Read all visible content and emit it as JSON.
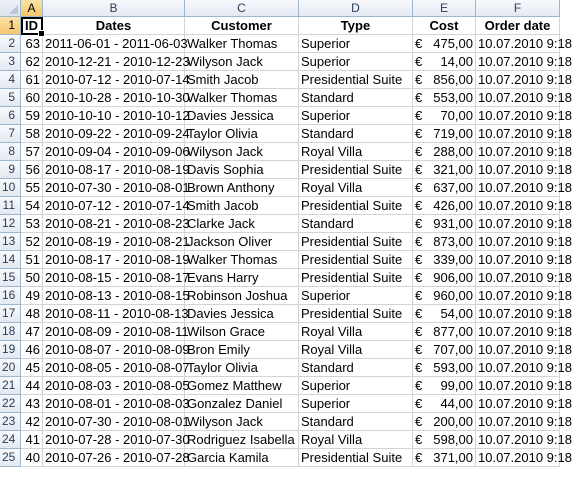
{
  "columns": [
    "A",
    "B",
    "C",
    "D",
    "E",
    "F"
  ],
  "headers": {
    "id": "ID",
    "dates": "Dates",
    "customer": "Customer",
    "type": "Type",
    "cost": "Cost",
    "order_date": "Order date"
  },
  "header_row_number": "1",
  "currency_symbol": "€",
  "rows": [
    {
      "n": "2",
      "id": "63",
      "dates": "2011-06-01 - 2011-06-03",
      "customer": "Walker Thomas",
      "type": "Superior",
      "cost": "475,00",
      "order_date": "10.07.2010 9:18"
    },
    {
      "n": "3",
      "id": "62",
      "dates": "2010-12-21 - 2010-12-23",
      "customer": "Wilyson Jack",
      "type": "Superior",
      "cost": "14,00",
      "order_date": "10.07.2010 9:18"
    },
    {
      "n": "4",
      "id": "61",
      "dates": "2010-07-12 - 2010-07-14",
      "customer": "Smith Jacob",
      "type": "Presidential Suite",
      "cost": "856,00",
      "order_date": "10.07.2010 9:18"
    },
    {
      "n": "5",
      "id": "60",
      "dates": "2010-10-28 - 2010-10-30",
      "customer": "Walker Thomas",
      "type": "Standard",
      "cost": "553,00",
      "order_date": "10.07.2010 9:18"
    },
    {
      "n": "6",
      "id": "59",
      "dates": "2010-10-10 - 2010-10-12",
      "customer": "Davies Jessica",
      "type": "Superior",
      "cost": "70,00",
      "order_date": "10.07.2010 9:18"
    },
    {
      "n": "7",
      "id": "58",
      "dates": "2010-09-22 - 2010-09-24",
      "customer": "Taylor Olivia",
      "type": "Standard",
      "cost": "719,00",
      "order_date": "10.07.2010 9:18"
    },
    {
      "n": "8",
      "id": "57",
      "dates": "2010-09-04 - 2010-09-06",
      "customer": "Wilyson Jack",
      "type": "Royal Villa",
      "cost": "288,00",
      "order_date": "10.07.2010 9:18"
    },
    {
      "n": "9",
      "id": "56",
      "dates": "2010-08-17 - 2010-08-19",
      "customer": "Davis Sophia",
      "type": "Presidential Suite",
      "cost": "321,00",
      "order_date": "10.07.2010 9:18"
    },
    {
      "n": "10",
      "id": "55",
      "dates": "2010-07-30 - 2010-08-01",
      "customer": "Brown Anthony",
      "type": "Royal Villa",
      "cost": "637,00",
      "order_date": "10.07.2010 9:18"
    },
    {
      "n": "11",
      "id": "54",
      "dates": "2010-07-12 - 2010-07-14",
      "customer": "Smith Jacob",
      "type": "Presidential Suite",
      "cost": "426,00",
      "order_date": "10.07.2010 9:18"
    },
    {
      "n": "12",
      "id": "53",
      "dates": "2010-08-21 - 2010-08-23",
      "customer": "Clarke Jack",
      "type": "Standard",
      "cost": "931,00",
      "order_date": "10.07.2010 9:18"
    },
    {
      "n": "13",
      "id": "52",
      "dates": "2010-08-19 - 2010-08-21",
      "customer": "Jackson Oliver",
      "type": "Presidential Suite",
      "cost": "873,00",
      "order_date": "10.07.2010 9:18"
    },
    {
      "n": "14",
      "id": "51",
      "dates": "2010-08-17 - 2010-08-19",
      "customer": "Walker Thomas",
      "type": "Presidential Suite",
      "cost": "339,00",
      "order_date": "10.07.2010 9:18"
    },
    {
      "n": "15",
      "id": "50",
      "dates": "2010-08-15 - 2010-08-17",
      "customer": "Evans Harry",
      "type": "Presidential Suite",
      "cost": "906,00",
      "order_date": "10.07.2010 9:18"
    },
    {
      "n": "16",
      "id": "49",
      "dates": "2010-08-13 - 2010-08-15",
      "customer": "Robinson Joshua",
      "type": "Superior",
      "cost": "960,00",
      "order_date": "10.07.2010 9:18"
    },
    {
      "n": "17",
      "id": "48",
      "dates": "2010-08-11 - 2010-08-13",
      "customer": "Davies Jessica",
      "type": "Presidential Suite",
      "cost": "54,00",
      "order_date": "10.07.2010 9:18"
    },
    {
      "n": "18",
      "id": "47",
      "dates": "2010-08-09 - 2010-08-11",
      "customer": "Wilson Grace",
      "type": "Royal Villa",
      "cost": "877,00",
      "order_date": "10.07.2010 9:18"
    },
    {
      "n": "19",
      "id": "46",
      "dates": "2010-08-07 - 2010-08-09",
      "customer": "Bron Emily",
      "type": "Royal Villa",
      "cost": "707,00",
      "order_date": "10.07.2010 9:18"
    },
    {
      "n": "20",
      "id": "45",
      "dates": "2010-08-05 - 2010-08-07",
      "customer": "Taylor Olivia",
      "type": "Standard",
      "cost": "593,00",
      "order_date": "10.07.2010 9:18"
    },
    {
      "n": "21",
      "id": "44",
      "dates": "2010-08-03 - 2010-08-05",
      "customer": "Gomez Matthew",
      "type": "Superior",
      "cost": "99,00",
      "order_date": "10.07.2010 9:18"
    },
    {
      "n": "22",
      "id": "43",
      "dates": "2010-08-01 - 2010-08-03",
      "customer": "Gonzalez Daniel",
      "type": "Superior",
      "cost": "44,00",
      "order_date": "10.07.2010 9:18"
    },
    {
      "n": "23",
      "id": "42",
      "dates": "2010-07-30 - 2010-08-01",
      "customer": "Wilyson Jack",
      "type": "Standard",
      "cost": "200,00",
      "order_date": "10.07.2010 9:18"
    },
    {
      "n": "24",
      "id": "41",
      "dates": "2010-07-28 - 2010-07-30",
      "customer": "Rodriguez Isabella",
      "type": "Royal Villa",
      "cost": "598,00",
      "order_date": "10.07.2010 9:18"
    },
    {
      "n": "25",
      "id": "40",
      "dates": "2010-07-26 - 2010-07-28",
      "customer": "Garcia Kamila",
      "type": "Presidential Suite",
      "cost": "371,00",
      "order_date": "10.07.2010 9:18"
    }
  ]
}
